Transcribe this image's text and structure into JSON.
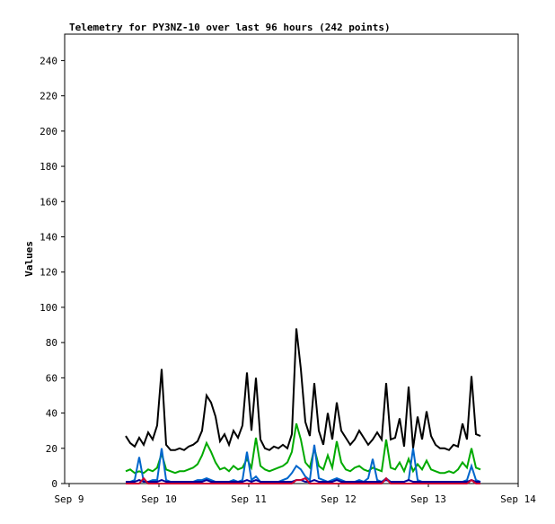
{
  "chart_data": {
    "type": "line",
    "title": "Telemetry for PY3NZ-10 over last 96 hours (242 points)",
    "ylabel": "Values",
    "xlim": [
      8.95,
      14
    ],
    "xticks": [
      {
        "value": 9,
        "label": "Sep 9"
      },
      {
        "value": 10,
        "label": "Sep 10"
      },
      {
        "value": 11,
        "label": "Sep 11"
      },
      {
        "value": 12,
        "label": "Sep 12"
      },
      {
        "value": 13,
        "label": "Sep 13"
      },
      {
        "value": 14,
        "label": "Sep 14"
      }
    ],
    "ylim": [
      0,
      255
    ],
    "yticks": [
      0,
      20,
      40,
      60,
      80,
      100,
      120,
      140,
      160,
      180,
      200,
      220,
      240
    ],
    "x": [
      9.63,
      9.68,
      9.73,
      9.78,
      9.83,
      9.88,
      9.93,
      9.98,
      10.03,
      10.08,
      10.13,
      10.18,
      10.23,
      10.28,
      10.33,
      10.38,
      10.43,
      10.48,
      10.53,
      10.58,
      10.63,
      10.68,
      10.73,
      10.78,
      10.83,
      10.88,
      10.93,
      10.98,
      11.03,
      11.08,
      11.13,
      11.18,
      11.23,
      11.28,
      11.33,
      11.38,
      11.43,
      11.48,
      11.53,
      11.58,
      11.63,
      11.68,
      11.73,
      11.78,
      11.83,
      11.88,
      11.93,
      11.98,
      12.03,
      12.08,
      12.13,
      12.18,
      12.23,
      12.28,
      12.33,
      12.38,
      12.43,
      12.48,
      12.53,
      12.58,
      12.63,
      12.68,
      12.73,
      12.78,
      12.83,
      12.88,
      12.93,
      12.98,
      13.03,
      13.08,
      13.13,
      13.18,
      13.23,
      13.28,
      13.33,
      13.38,
      13.43,
      13.48,
      13.53,
      13.58
    ],
    "series": [
      {
        "color": "#000000",
        "values": [
          27,
          23,
          21,
          26,
          22,
          29,
          25,
          33,
          65,
          22,
          19,
          19,
          20,
          19,
          21,
          22,
          24,
          30,
          50,
          46,
          38,
          24,
          28,
          22,
          30,
          26,
          33,
          63,
          30,
          60,
          25,
          20,
          19,
          21,
          20,
          22,
          20,
          28,
          88,
          65,
          35,
          27,
          57,
          30,
          22,
          40,
          25,
          46,
          30,
          26,
          22,
          25,
          30,
          26,
          22,
          25,
          29,
          25,
          57,
          25,
          26,
          37,
          21,
          55,
          20,
          38,
          25,
          41,
          27,
          22,
          20,
          20,
          19,
          22,
          21,
          34,
          25,
          61,
          28,
          27
        ]
      },
      {
        "color": "#00aa00",
        "values": [
          7,
          8,
          6,
          7,
          6,
          8,
          7,
          9,
          17,
          8,
          7,
          6,
          7,
          7,
          8,
          9,
          11,
          16,
          23,
          18,
          12,
          8,
          9,
          7,
          10,
          8,
          9,
          14,
          9,
          26,
          10,
          8,
          7,
          8,
          9,
          10,
          12,
          18,
          34,
          25,
          12,
          9,
          20,
          10,
          8,
          16,
          9,
          24,
          12,
          8,
          7,
          9,
          10,
          8,
          7,
          9,
          8,
          7,
          25,
          9,
          8,
          12,
          7,
          14,
          7,
          11,
          8,
          13,
          8,
          7,
          6,
          6,
          7,
          6,
          8,
          12,
          9,
          20,
          9,
          8
        ]
      },
      {
        "color": "#0066cc",
        "values": [
          1,
          1,
          2,
          15,
          1,
          1,
          2,
          2,
          20,
          2,
          1,
          1,
          1,
          1,
          1,
          1,
          2,
          2,
          3,
          2,
          1,
          1,
          1,
          1,
          2,
          1,
          2,
          18,
          2,
          4,
          1,
          1,
          1,
          1,
          1,
          2,
          3,
          6,
          10,
          8,
          4,
          2,
          22,
          3,
          2,
          1,
          2,
          3,
          2,
          1,
          1,
          1,
          2,
          1,
          3,
          14,
          2,
          1,
          3,
          1,
          1,
          1,
          1,
          2,
          20,
          2,
          1,
          1,
          1,
          1,
          1,
          1,
          1,
          1,
          1,
          1,
          2,
          10,
          2,
          1
        ]
      },
      {
        "color": "#000099",
        "values": [
          1,
          1,
          1,
          2,
          1,
          1,
          1,
          1,
          2,
          1,
          1,
          1,
          1,
          1,
          1,
          1,
          1,
          1,
          2,
          1,
          1,
          1,
          1,
          1,
          1,
          1,
          1,
          2,
          1,
          2,
          1,
          1,
          1,
          1,
          1,
          1,
          1,
          1,
          2,
          2,
          1,
          1,
          2,
          1,
          1,
          1,
          1,
          2,
          1,
          1,
          1,
          1,
          1,
          1,
          1,
          1,
          1,
          1,
          2,
          1,
          1,
          1,
          1,
          2,
          1,
          1,
          1,
          1,
          1,
          1,
          1,
          1,
          1,
          1,
          1,
          1,
          1,
          2,
          1,
          1
        ]
      },
      {
        "color": "#cc0033",
        "values": [
          0,
          0,
          0,
          0,
          3,
          0,
          0,
          0,
          0,
          0,
          0,
          0,
          0,
          0,
          0,
          0,
          0,
          0,
          0,
          0,
          0,
          0,
          0,
          0,
          0,
          0,
          0,
          0,
          0,
          0,
          0,
          0,
          0,
          0,
          0,
          0,
          0,
          0,
          2,
          2,
          3,
          0,
          0,
          0,
          0,
          0,
          0,
          0,
          0,
          0,
          0,
          0,
          0,
          0,
          0,
          0,
          0,
          0,
          3,
          0,
          0,
          0,
          0,
          0,
          0,
          0,
          0,
          0,
          0,
          0,
          0,
          0,
          0,
          0,
          0,
          0,
          0,
          2,
          0,
          0
        ]
      }
    ]
  }
}
